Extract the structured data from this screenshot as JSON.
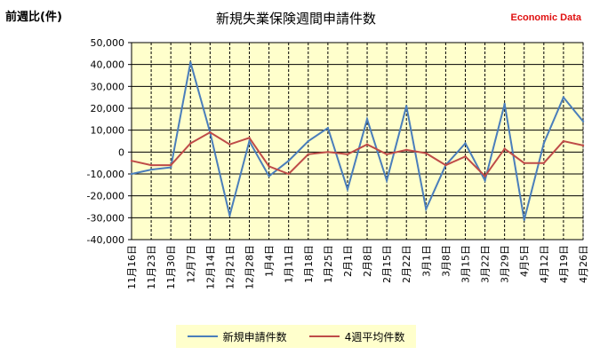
{
  "header": {
    "y_unit_label": "前週比(件)",
    "title": "新規失業保険週間申請件数",
    "brand": "Economic Data"
  },
  "colors": {
    "plot_background": "#ffffcc",
    "series1": "#4a7ebb",
    "series2": "#be4b48",
    "grid": "#000000"
  },
  "chart_data": {
    "type": "line",
    "title": "新規失業保険週間申請件数",
    "ylabel": "前週比(件)",
    "ylim": [
      -40000,
      50000
    ],
    "yticks": [
      50000,
      40000,
      30000,
      20000,
      10000,
      0,
      -10000,
      -20000,
      -30000,
      -40000
    ],
    "ytick_labels": [
      "50,000",
      "40,000",
      "30,000",
      "20,000",
      "10,000",
      "0",
      "-10,000",
      "-20,000",
      "-30,000",
      "-40,000"
    ],
    "grid": true,
    "legend_position": "bottom",
    "categories": [
      "11月16日",
      "11月23日",
      "11月30日",
      "12月7日",
      "12月14日",
      "12月21日",
      "12月28日",
      "1月4日",
      "1月11日",
      "1月18日",
      "1月25日",
      "2月1日",
      "2月8日",
      "2月15日",
      "2月22日",
      "3月1日",
      "3月8日",
      "3月15日",
      "3月22日",
      "3月29日",
      "4月5日",
      "4月12日",
      "4月19日",
      "4月26日"
    ],
    "series": [
      {
        "name": "新規申請件数",
        "values": [
          -10000,
          -8000,
          -7000,
          41000,
          9000,
          -29000,
          5000,
          -11000,
          -4000,
          5000,
          11000,
          -17000,
          15000,
          -13000,
          21000,
          -26000,
          -6000,
          4000,
          -13000,
          22000,
          -31000,
          4000,
          25000,
          14000
        ]
      },
      {
        "name": "4週平均件数",
        "values": [
          -4000,
          -6000,
          -6000,
          4000,
          9000,
          3500,
          6500,
          -6500,
          -10000,
          -1000,
          0,
          -1000,
          3500,
          -1000,
          1000,
          -500,
          -6000,
          -2000,
          -11000,
          1500,
          -5000,
          -5000,
          5000,
          3000
        ]
      }
    ]
  }
}
